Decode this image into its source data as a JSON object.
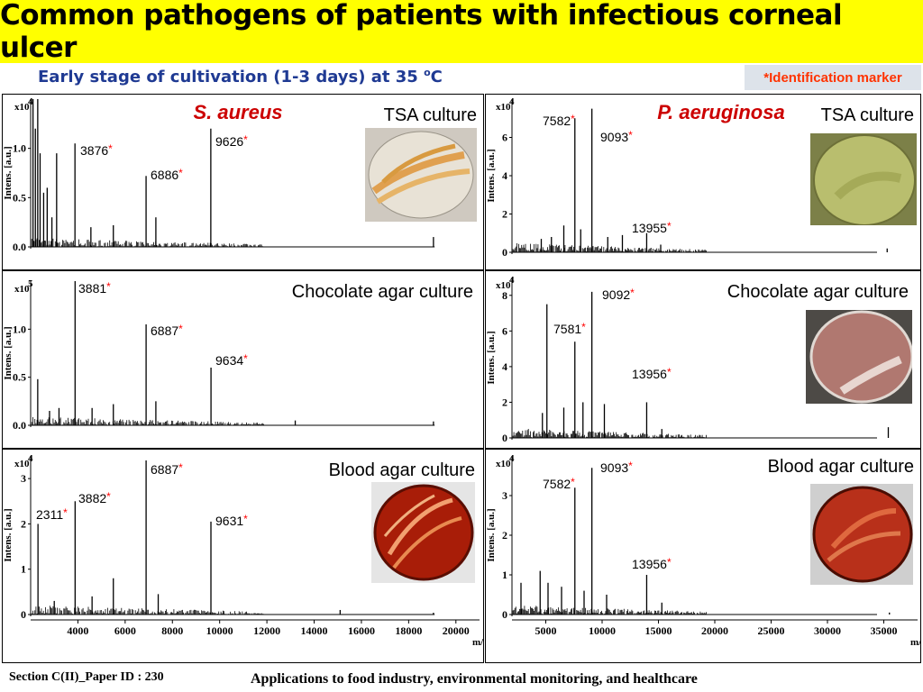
{
  "title": "Common pathogens of patients with infectious corneal ulcer",
  "subtitle": "Early stage of cultivation (1-3 days) at 35 ",
  "subtitle_sup": "o",
  "subtitle_unit": "C",
  "marker_label": "*Identification marker",
  "footer_left": "Section C(II)_Paper ID : 230",
  "footer_right": "Applications to food industry, environmental monitoring, and healthcare",
  "colors": {
    "title_bg": "#ffff00",
    "species": "#cc0000",
    "star": "#ff0000",
    "subtitle": "#1f3a93"
  },
  "chart_data": [
    {
      "type": "line",
      "species": "S. aureus",
      "culture": "TSA culture",
      "ylabel": "Intens. [a.u.]",
      "exponent": "x10",
      "exponent_power": "4",
      "yticks": [
        "0.0",
        "0.5",
        "1.0"
      ],
      "ylim": [
        0,
        1.5
      ],
      "xlim": [
        2000,
        21000
      ],
      "peaks": [
        {
          "x": 2100,
          "y": 1.5
        },
        {
          "x": 2200,
          "y": 1.2
        },
        {
          "x": 2300,
          "y": 1.5
        },
        {
          "x": 2400,
          "y": 0.95
        },
        {
          "x": 2550,
          "y": 0.55
        },
        {
          "x": 2700,
          "y": 0.6
        },
        {
          "x": 2900,
          "y": 0.3
        },
        {
          "x": 3100,
          "y": 0.95
        },
        {
          "x": 3876,
          "y": 1.05,
          "label": "3876"
        },
        {
          "x": 4550,
          "y": 0.2
        },
        {
          "x": 5500,
          "y": 0.22
        },
        {
          "x": 6886,
          "y": 0.72,
          "label": "6886"
        },
        {
          "x": 7300,
          "y": 0.3
        },
        {
          "x": 9626,
          "y": 1.2,
          "label": "9626"
        },
        {
          "x": 19050,
          "y": 0.1
        }
      ]
    },
    {
      "type": "line",
      "species": "",
      "culture": "Chocolate agar culture",
      "ylabel": "Intens. [a.u.]",
      "exponent": "x10",
      "exponent_power": "5",
      "yticks": [
        "0.0",
        "0.5",
        "1.0"
      ],
      "ylim": [
        0,
        1.5
      ],
      "xlim": [
        2000,
        21000
      ],
      "peaks": [
        {
          "x": 2300,
          "y": 0.48
        },
        {
          "x": 2800,
          "y": 0.15
        },
        {
          "x": 3200,
          "y": 0.18
        },
        {
          "x": 3881,
          "y": 1.5,
          "label": "3881"
        },
        {
          "x": 4600,
          "y": 0.18
        },
        {
          "x": 5500,
          "y": 0.22
        },
        {
          "x": 6887,
          "y": 1.05,
          "label": "6887"
        },
        {
          "x": 7300,
          "y": 0.25
        },
        {
          "x": 9634,
          "y": 0.6,
          "label": "9634"
        },
        {
          "x": 13200,
          "y": 0.05
        },
        {
          "x": 19050,
          "y": 0.04
        }
      ]
    },
    {
      "type": "line",
      "species": "",
      "culture": "Blood agar culture",
      "ylabel": "Intens. [a.u.]",
      "exponent": "x10",
      "exponent_power": "4",
      "yticks": [
        "0",
        "1",
        "2",
        "3"
      ],
      "ylim": [
        0,
        3.5
      ],
      "xlim": [
        2000,
        21000
      ],
      "peaks": [
        {
          "x": 2311,
          "y": 2.0,
          "label": "2311"
        },
        {
          "x": 3000,
          "y": 0.3
        },
        {
          "x": 3882,
          "y": 2.5,
          "label": "3882"
        },
        {
          "x": 4600,
          "y": 0.4
        },
        {
          "x": 5500,
          "y": 0.8
        },
        {
          "x": 6887,
          "y": 3.4,
          "label": "6887"
        },
        {
          "x": 7400,
          "y": 0.45
        },
        {
          "x": 9631,
          "y": 2.05,
          "label": "9631"
        },
        {
          "x": 15100,
          "y": 0.1
        },
        {
          "x": 19050,
          "y": 0.04
        }
      ],
      "xticks": [
        "4000",
        "6000",
        "8000",
        "10000",
        "12000",
        "14000",
        "16000",
        "18000",
        "20000"
      ],
      "xlabel": "m/z"
    },
    {
      "type": "line",
      "species": "P. aeruginosa",
      "culture": "TSA culture",
      "ylabel": "Intens. [a.u.]",
      "exponent": "x10",
      "exponent_power": "4",
      "yticks": [
        "0",
        "2",
        "4",
        "6"
      ],
      "ylim": [
        0,
        8
      ],
      "xlim": [
        2000,
        38000
      ],
      "peaks": [
        {
          "x": 4600,
          "y": 0.7
        },
        {
          "x": 5500,
          "y": 0.8
        },
        {
          "x": 6600,
          "y": 1.4
        },
        {
          "x": 7582,
          "y": 7.0,
          "label": "7582"
        },
        {
          "x": 8100,
          "y": 1.2
        },
        {
          "x": 9093,
          "y": 7.5,
          "label": "9093"
        },
        {
          "x": 10500,
          "y": 0.8
        },
        {
          "x": 11800,
          "y": 0.9
        },
        {
          "x": 13955,
          "y": 1.0,
          "label": "13955"
        },
        {
          "x": 15200,
          "y": 0.4
        },
        {
          "x": 35300,
          "y": 0.2
        }
      ]
    },
    {
      "type": "line",
      "species": "",
      "culture": "Chocolate agar culture",
      "ylabel": "Intens. [a.u.]",
      "exponent": "x10",
      "exponent_power": "4",
      "yticks": [
        "0",
        "2",
        "4",
        "6",
        "8"
      ],
      "ylim": [
        0,
        9
      ],
      "xlim": [
        2000,
        38000
      ],
      "peaks": [
        {
          "x": 4700,
          "y": 1.4
        },
        {
          "x": 5100,
          "y": 7.5
        },
        {
          "x": 6600,
          "y": 1.7
        },
        {
          "x": 7581,
          "y": 5.4,
          "label": "7581"
        },
        {
          "x": 8300,
          "y": 2.0
        },
        {
          "x": 9092,
          "y": 8.2,
          "label": "9092"
        },
        {
          "x": 10200,
          "y": 1.9
        },
        {
          "x": 13956,
          "y": 2.0,
          "label": "13956"
        },
        {
          "x": 15300,
          "y": 0.5
        },
        {
          "x": 35400,
          "y": 0.6
        }
      ]
    },
    {
      "type": "line",
      "species": "",
      "culture": "Blood agar culture",
      "ylabel": "Intens. [a.u.]",
      "exponent": "x10",
      "exponent_power": "4",
      "yticks": [
        "0",
        "1",
        "2",
        "3"
      ],
      "ylim": [
        0,
        4
      ],
      "xlim": [
        2000,
        38000
      ],
      "peaks": [
        {
          "x": 2800,
          "y": 0.8
        },
        {
          "x": 4500,
          "y": 1.1
        },
        {
          "x": 5200,
          "y": 0.8
        },
        {
          "x": 6400,
          "y": 0.7
        },
        {
          "x": 7582,
          "y": 3.2,
          "label": "7582"
        },
        {
          "x": 8400,
          "y": 0.6
        },
        {
          "x": 9093,
          "y": 3.7,
          "label": "9093"
        },
        {
          "x": 10400,
          "y": 0.5
        },
        {
          "x": 13956,
          "y": 1.0,
          "label": "13956"
        },
        {
          "x": 15300,
          "y": 0.3
        },
        {
          "x": 35500,
          "y": 0.05
        }
      ],
      "xticks": [
        "5000",
        "10000",
        "15000",
        "20000",
        "25000",
        "30000",
        "35000"
      ],
      "xlabel": "m/z"
    }
  ]
}
